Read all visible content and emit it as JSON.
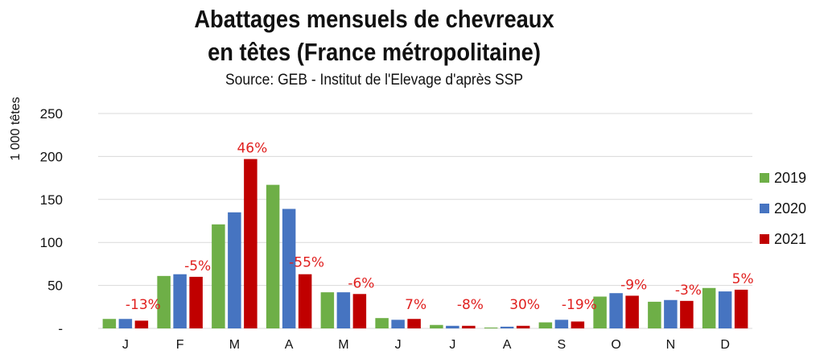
{
  "chart_data": {
    "type": "bar",
    "title_line1": "Abattages mensuels de chevreaux",
    "title_line2": "en têtes (France métropolitaine)",
    "subtitle": "Source: GEB - Institut de l'Elevage d'après SSP",
    "ylabel": "1 000 têtes",
    "ylim": [
      0,
      250
    ],
    "yticks": [
      "-",
      "50",
      "100",
      "150",
      "200",
      "250"
    ],
    "ytick_values": [
      0,
      50,
      100,
      150,
      200,
      250
    ],
    "grid": true,
    "legend_position": "right",
    "categories": [
      "J",
      "F",
      "M",
      "A",
      "M",
      "J",
      "J",
      "A",
      "S",
      "O",
      "N",
      "D"
    ],
    "series": [
      {
        "name": "2019",
        "color": "#6eaf47",
        "values": [
          11,
          61,
          121,
          167,
          42,
          12,
          4,
          1,
          7,
          37,
          31,
          47
        ]
      },
      {
        "name": "2020",
        "color": "#4674c1",
        "values": [
          11,
          63,
          135,
          139,
          42,
          10,
          3,
          2,
          10,
          41,
          33,
          43
        ]
      },
      {
        "name": "2021",
        "color": "#c00000",
        "values": [
          9,
          60,
          197,
          63,
          40,
          11,
          3,
          3,
          8,
          38,
          32,
          45
        ]
      }
    ],
    "annotations": [
      "-13%",
      "-5%",
      "46%",
      "-55%",
      "-6%",
      "7%",
      "-8%",
      "30%",
      "-19%",
      "-9%",
      "-3%",
      "5%"
    ],
    "annotation_color": "#e0201f"
  }
}
